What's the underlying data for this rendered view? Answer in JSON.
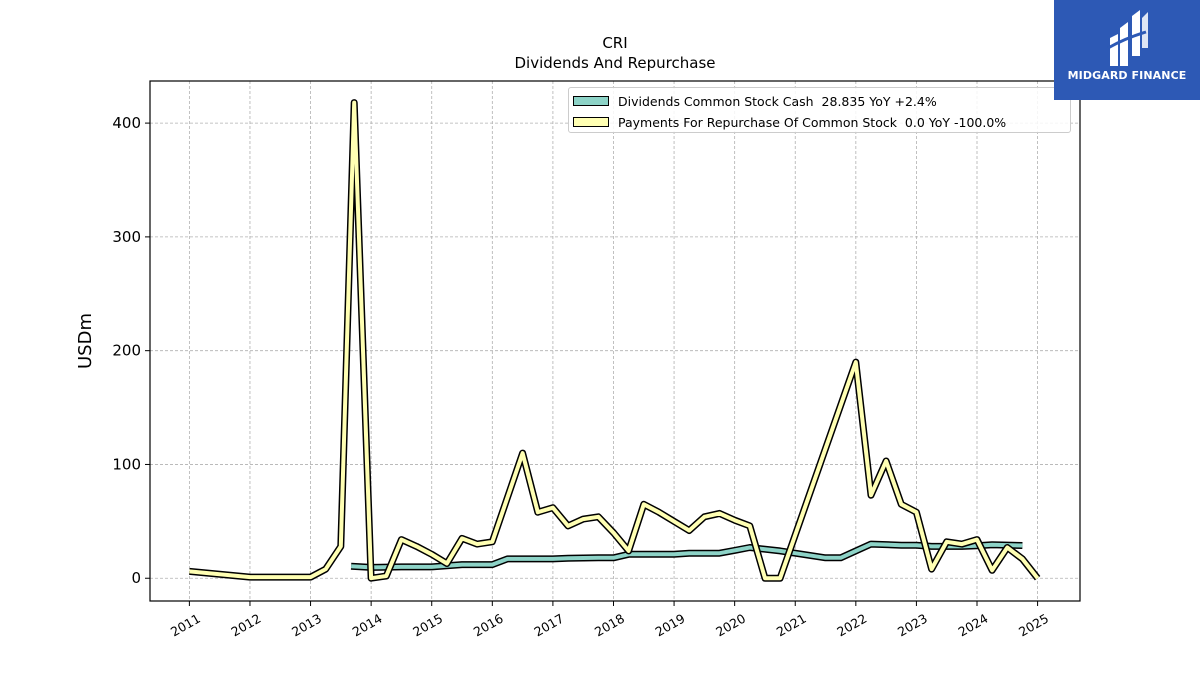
{
  "header": {
    "ticker": "CRI",
    "title": "Dividends And Repurchase"
  },
  "logo": {
    "text": "MIDGARD FINANCE",
    "background": "#2d59b5"
  },
  "legend": {
    "items": [
      {
        "label": "Dividends Common Stock Cash  28.835 YoY +2.4%",
        "color": "#8dd3c7"
      },
      {
        "label": "Payments For Repurchase Of Common Stock  0.0 YoY -100.0%",
        "color": "#ffffb3"
      }
    ]
  },
  "chart_data": {
    "type": "line",
    "title": "CRI",
    "subtitle": "Dividends And Repurchase",
    "xlabel": "",
    "ylabel": "USDm",
    "xlim": [
      2010.35,
      2025.7
    ],
    "ylim": [
      -20,
      437
    ],
    "x_ticks": [
      "2011",
      "2012",
      "2013",
      "2014",
      "2015",
      "2016",
      "2017",
      "2018",
      "2019",
      "2020",
      "2021",
      "2022",
      "2023",
      "2024",
      "2025"
    ],
    "y_ticks": [
      0,
      100,
      200,
      300,
      400
    ],
    "grid": true,
    "legend_position": "top-right",
    "series": [
      {
        "name": "Dividends Common Stock Cash  28.835 YoY +2.4%",
        "color": "#8dd3c7",
        "x": [
          2013.67,
          2014.0,
          2014.5,
          2015.0,
          2015.5,
          2016.0,
          2016.25,
          2016.75,
          2017.0,
          2017.25,
          2017.75,
          2018.0,
          2018.25,
          2018.75,
          2019.0,
          2019.25,
          2019.75,
          2020.0,
          2020.25,
          2020.75,
          2021.0,
          2021.5,
          2021.75,
          2022.0,
          2022.25,
          2022.75,
          2023.0,
          2023.25,
          2023.75,
          2024.0,
          2024.25,
          2024.75
        ],
        "y": [
          10.5,
          9.5,
          10.0,
          10.0,
          12.0,
          12.0,
          17.0,
          17.0,
          17.0,
          17.5,
          18.0,
          18.0,
          21.0,
          21.0,
          21.0,
          22.0,
          22.0,
          24.5,
          27.0,
          24.0,
          22.0,
          18.0,
          18.0,
          24.0,
          30.0,
          29.0,
          29.0,
          28.0,
          28.0,
          28.5,
          29.5,
          28.8
        ]
      },
      {
        "name": "Payments For Repurchase Of Common Stock  0.0 YoY -100.0%",
        "color": "#ffffb3",
        "x": [
          2011.0,
          2012.0,
          2013.0,
          2013.25,
          2013.5,
          2013.72,
          2014.0,
          2014.25,
          2014.5,
          2014.75,
          2015.0,
          2015.25,
          2015.5,
          2015.75,
          2016.0,
          2016.5,
          2016.75,
          2017.0,
          2017.25,
          2017.5,
          2017.75,
          2018.0,
          2018.25,
          2018.5,
          2018.75,
          2019.0,
          2019.25,
          2019.5,
          2019.75,
          2020.0,
          2020.25,
          2020.5,
          2020.75,
          2022.0,
          2022.25,
          2022.5,
          2022.75,
          2023.0,
          2023.25,
          2023.5,
          2023.75,
          2024.0,
          2024.25,
          2024.5,
          2024.75,
          2025.0
        ],
        "y": [
          6,
          1,
          1,
          8,
          28,
          418,
          0,
          2,
          34,
          28,
          21,
          13,
          35,
          30,
          32,
          110,
          58,
          62,
          46,
          52,
          54,
          40,
          24,
          65,
          58,
          50,
          42,
          54,
          57,
          51,
          46,
          0,
          0,
          190,
          73,
          103,
          65,
          58,
          8,
          32,
          30,
          34,
          7,
          27,
          17,
          0
        ]
      }
    ]
  }
}
